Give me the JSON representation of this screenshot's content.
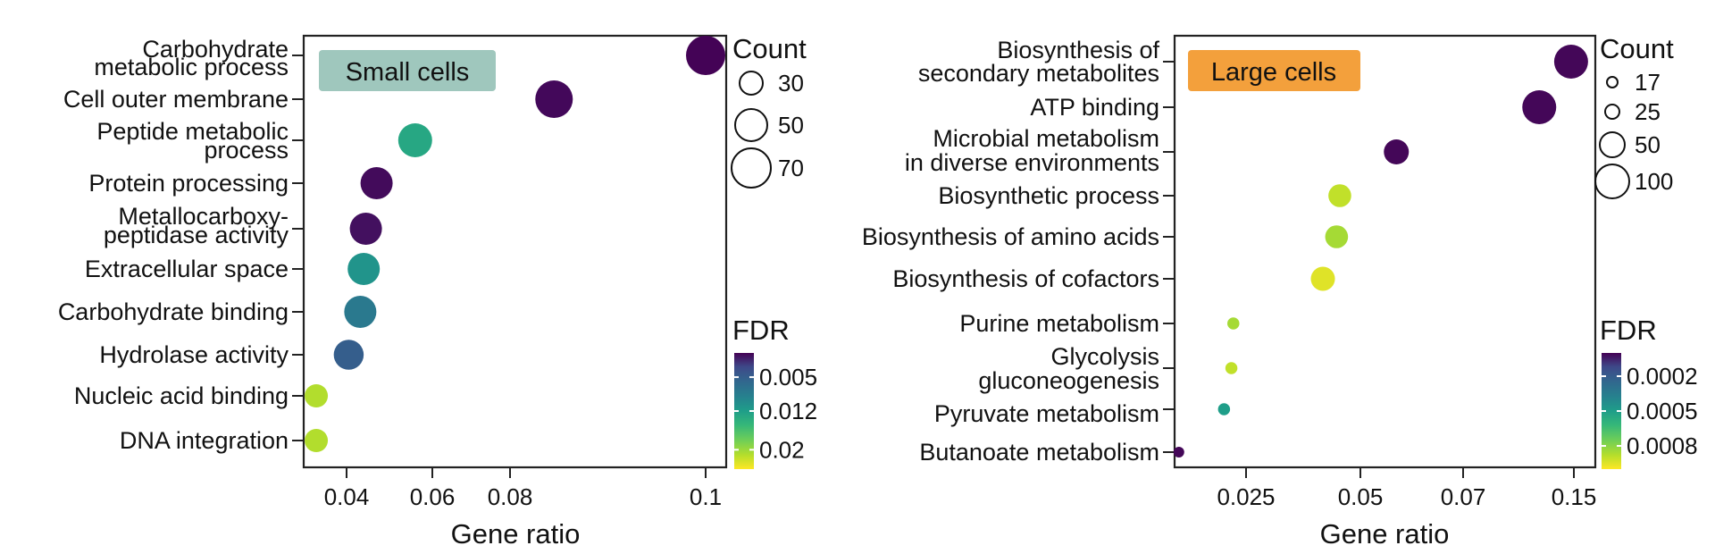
{
  "chart_data": [
    {
      "type": "scatter",
      "panel_label": "Small cells",
      "panel_label_color": "#9fc7bd",
      "xlabel": "Gene ratio",
      "xlim": [
        0.031,
        0.102
      ],
      "xticks": [
        0.04,
        0.06,
        0.08,
        0.1
      ],
      "xtick_labels": [
        "0.04",
        "0.06",
        "0.08",
        "0.1"
      ],
      "grid": false,
      "terms": [
        {
          "label": [
            "Carbohydrate",
            "metabolic process"
          ],
          "gene_ratio": 0.1,
          "count": 70,
          "fdr": 0.0001
        },
        {
          "label": [
            "Cell outer membrane"
          ],
          "gene_ratio": 0.0845,
          "count": 65,
          "fdr": 0.0003
        },
        {
          "label": [
            "Peptide metabolic",
            "process"
          ],
          "gene_ratio": 0.056,
          "count": 55,
          "fdr": 0.013
        },
        {
          "label": [
            "Protein processing"
          ],
          "gene_ratio": 0.047,
          "count": 50,
          "fdr": 0.0004
        },
        {
          "label": [
            "Metallocarboxy-",
            "peptidase activity"
          ],
          "gene_ratio": 0.0445,
          "count": 50,
          "fdr": 0.0006
        },
        {
          "label": [
            "Extracellular space"
          ],
          "gene_ratio": 0.044,
          "count": 50,
          "fdr": 0.011
        },
        {
          "label": [
            "Carbohydrate binding"
          ],
          "gene_ratio": 0.0432,
          "count": 50,
          "fdr": 0.008
        },
        {
          "label": [
            "Hydrolase activity"
          ],
          "gene_ratio": 0.0405,
          "count": 45,
          "fdr": 0.005
        },
        {
          "label": [
            "Nucleic acid binding"
          ],
          "gene_ratio": 0.0335,
          "count": 30,
          "fdr": 0.021
        },
        {
          "label": [
            "DNA integration"
          ],
          "gene_ratio": 0.0335,
          "count": 30,
          "fdr": 0.021
        }
      ],
      "size_legend": {
        "title": "Count",
        "values": [
          30,
          50,
          70
        ],
        "labels": [
          "30",
          "50",
          "70"
        ]
      },
      "color_legend": {
        "title": "FDR",
        "range": [
          0.0,
          0.024
        ],
        "ticks": [
          0.005,
          0.012,
          0.02
        ],
        "tick_labels": [
          "0.005",
          "0.012",
          "0.02"
        ]
      }
    },
    {
      "type": "scatter",
      "panel_label": "Large cells",
      "panel_label_color": "#f3a03c",
      "xlabel": "Gene ratio",
      "xlim": [
        0.0,
        0.155
      ],
      "xticks": [
        0.025,
        0.05,
        0.07,
        0.15
      ],
      "xtick_labels": [
        "0.025",
        "0.05",
        "0.07",
        "0.15"
      ],
      "grid": false,
      "terms": [
        {
          "label": [
            "Biosynthesis of",
            "secondary metabolites"
          ],
          "gene_ratio": 0.148,
          "count": 100,
          "fdr": 1e-05
        },
        {
          "label": [
            "ATP binding"
          ],
          "gene_ratio": 0.125,
          "count": 100,
          "fdr": 1e-05
        },
        {
          "label": [
            "Microbial metabolism",
            "in diverse environments"
          ],
          "gene_ratio": 0.057,
          "count": 50,
          "fdr": 1e-05
        },
        {
          "label": [
            "Biosynthetic process"
          ],
          "gene_ratio": 0.0455,
          "count": 45,
          "fdr": 0.0009
        },
        {
          "label": [
            "Biosynthesis of amino acids"
          ],
          "gene_ratio": 0.0448,
          "count": 45,
          "fdr": 0.00085
        },
        {
          "label": [
            "Biosynthesis of cofactors"
          ],
          "gene_ratio": 0.0418,
          "count": 48,
          "fdr": 0.00095
        },
        {
          "label": [
            "Purine metabolism"
          ],
          "gene_ratio": 0.0205,
          "count": 20,
          "fdr": 0.00085
        },
        {
          "label": [
            "Glycolysis",
            "gluconeogenesis"
          ],
          "gene_ratio": 0.0198,
          "count": 20,
          "fdr": 0.0009
        },
        {
          "label": [
            "Pyruvate metabolism"
          ],
          "gene_ratio": 0.0172,
          "count": 20,
          "fdr": 0.0005
        },
        {
          "label": [
            "Butanoate metabolism"
          ],
          "gene_ratio": 0.0012,
          "count": 17,
          "fdr": 1e-05
        }
      ],
      "size_legend": {
        "title": "Count",
        "values": [
          17,
          25,
          50,
          100
        ],
        "labels": [
          "17",
          "25",
          "50",
          "100"
        ]
      },
      "color_legend": {
        "title": "FDR",
        "range": [
          0.0,
          0.001
        ],
        "ticks": [
          0.0002,
          0.0005,
          0.0008
        ],
        "tick_labels": [
          "0.0002",
          "0.0005",
          "0.0008"
        ]
      }
    }
  ]
}
